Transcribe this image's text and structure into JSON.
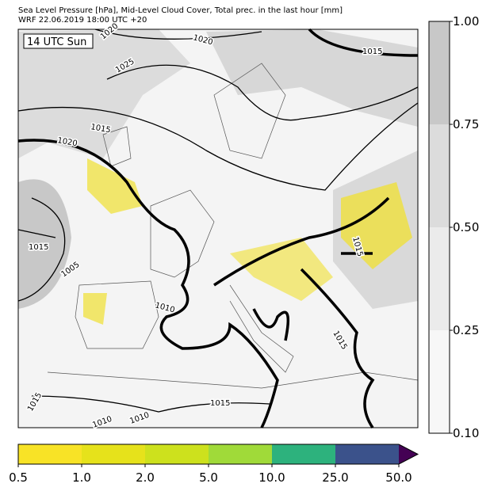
{
  "header": {
    "line1": "Sea Level Pressure [hPa], Mid-Level Cloud Cover, Total prec. in the last hour [mm]",
    "line2": "WRF 22.06.2019 18:00 UTC +20"
  },
  "map": {
    "time_label": "14 UTC Sun",
    "isobar_labels": [
      "1020",
      "1020",
      "1025",
      "1015",
      "1015",
      "1020",
      "1015",
      "1005",
      "1010",
      "1015",
      "1015",
      "1015",
      "1015",
      "1010",
      "1010"
    ]
  },
  "cloud_colorbar": {
    "ticks": [
      "1.00",
      "0.75",
      "0.50",
      "0.25",
      "0.10"
    ]
  },
  "precip_colorbar": {
    "ticks": [
      "0.5",
      "1.0",
      "2.0",
      "5.0",
      "10.0",
      "25.0",
      "50.0"
    ]
  }
}
